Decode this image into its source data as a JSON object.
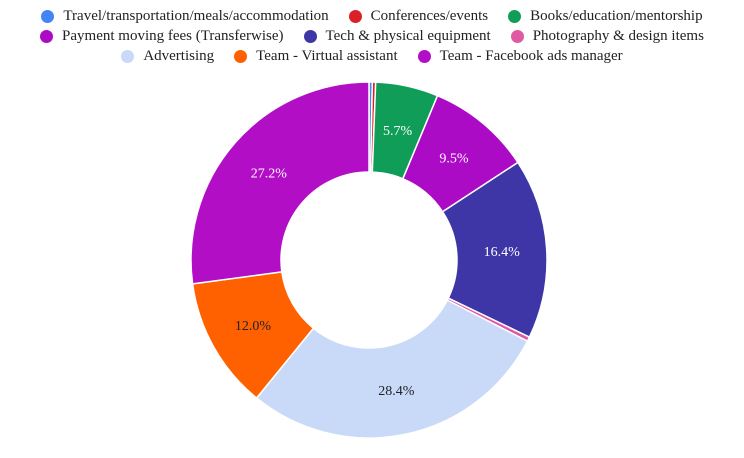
{
  "chart_data": {
    "type": "pie",
    "donut": true,
    "legend_position": "top",
    "slices": [
      {
        "label": "Travel/transportation/meals/accommodation",
        "value": 0.3,
        "display": "",
        "color": "#4285f4"
      },
      {
        "label": "Conferences/events",
        "value": 0.3,
        "display": "",
        "color": "#db1f26"
      },
      {
        "label": "Books/education/mentorship",
        "value": 5.7,
        "display": "5.7%",
        "color": "#0f9d58"
      },
      {
        "label": "Payment moving fees (Transferwise)",
        "value": 9.5,
        "display": "9.5%",
        "color": "#ab0bc4"
      },
      {
        "label": "Tech & physical equipment",
        "value": 16.4,
        "display": "16.4%",
        "color": "#3e36a6"
      },
      {
        "label": "Photography & design items",
        "value": 0.4,
        "display": "",
        "color": "#e05aa3"
      },
      {
        "label": "Advertising",
        "value": 28.4,
        "display": "28.4%",
        "color": "#c8daf8"
      },
      {
        "label": "Team - Virtual assistant",
        "value": 12.0,
        "display": "12.0%",
        "color": "#ff6100"
      },
      {
        "label": "Team - Facebook ads manager",
        "value": 27.2,
        "display": "27.2%",
        "color": "#b10ec6"
      }
    ]
  }
}
